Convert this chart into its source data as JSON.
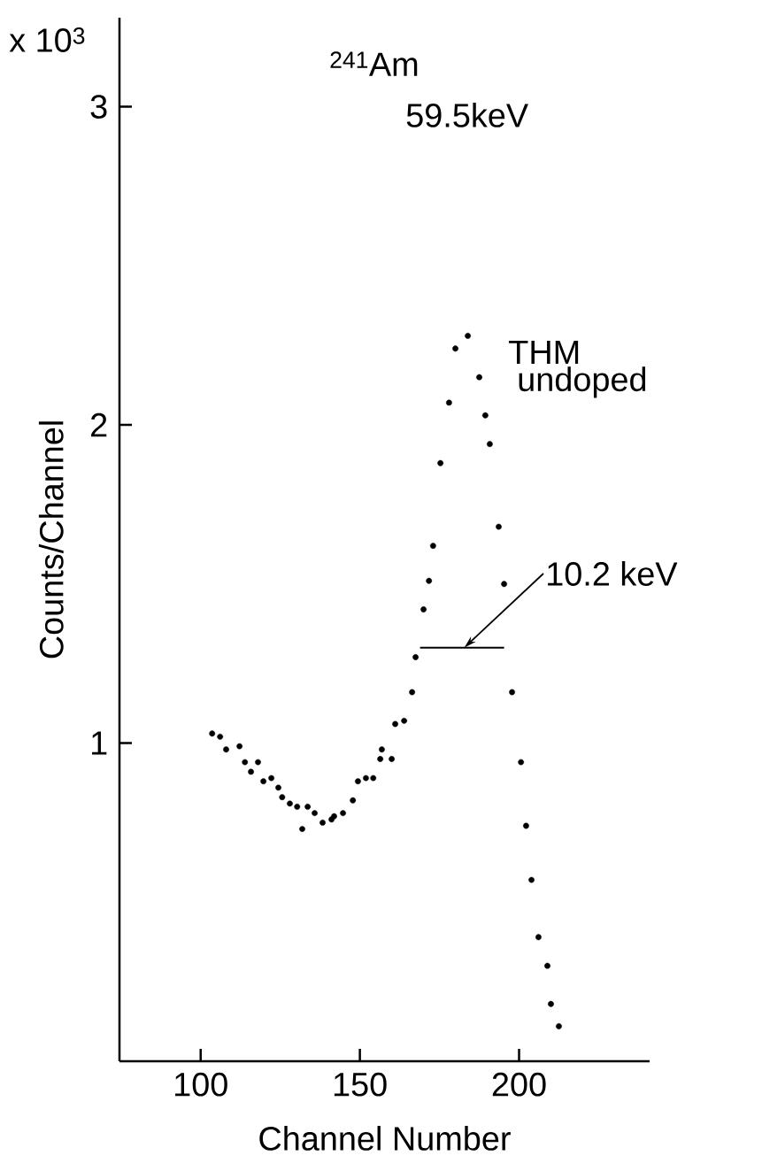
{
  "chart_data": {
    "type": "scatter",
    "xlabel": "Channel Number",
    "ylabel": "Counts/Channel",
    "annotations": [
      "x 10$^{3}$",
      "$^{241}$Am",
      "59.5keV",
      "THM",
      "undoped",
      {
        "text": "10.2 keV",
        "x": 182.8,
        "y": 1.3
      }
    ],
    "xlim": [
      74.5,
      241
    ],
    "xticks": [
      100,
      150,
      200
    ],
    "ylim": [
      0,
      3.28
    ],
    "yticks": [
      1,
      2,
      3
    ],
    "grid": false,
    "series": [
      {
        "marker": "circle",
        "color": "#000000",
        "x": [
          103.6,
          106.1,
          108,
          112.2,
          113.9,
          115.8,
          118,
          119.7,
          122.2,
          124.4,
          125.6,
          128,
          130.3,
          131.9,
          133.6,
          135.8,
          138.3,
          141.1,
          141.9,
          144.7,
          147.8,
          149.4,
          151.9,
          154.2,
          156.4,
          156.9,
          160,
          161.1,
          163.9,
          166.4,
          167.5,
          170,
          171.7,
          173,
          175.3,
          178,
          180,
          183.9,
          187.5,
          189.4,
          190.8,
          193.6,
          195.3,
          197.8,
          200.6,
          202.2,
          203.9,
          206.1,
          208.9,
          210,
          212.5
        ],
        "values": [
          1.03,
          1.02,
          0.98,
          0.99,
          0.94,
          0.91,
          0.94,
          0.88,
          0.89,
          0.86,
          0.83,
          0.81,
          0.8,
          0.73,
          0.8,
          0.78,
          0.75,
          0.76,
          0.77,
          0.78,
          0.82,
          0.88,
          0.89,
          0.89,
          0.95,
          0.98,
          0.95,
          1.06,
          1.07,
          1.16,
          1.27,
          1.42,
          1.51,
          1.62,
          1.88,
          2.07,
          2.24,
          2.28,
          2.15,
          2.03,
          1.94,
          1.68,
          1.5,
          1.16,
          0.94,
          0.74,
          0.57,
          0.39,
          0.3,
          0.18,
          0.11
        ]
      },
      {
        "type": "line",
        "marker": "none",
        "color": "#000000",
        "x": [
          168.9,
          195.3
        ],
        "values": [
          1.3,
          1.3
        ]
      }
    ]
  }
}
